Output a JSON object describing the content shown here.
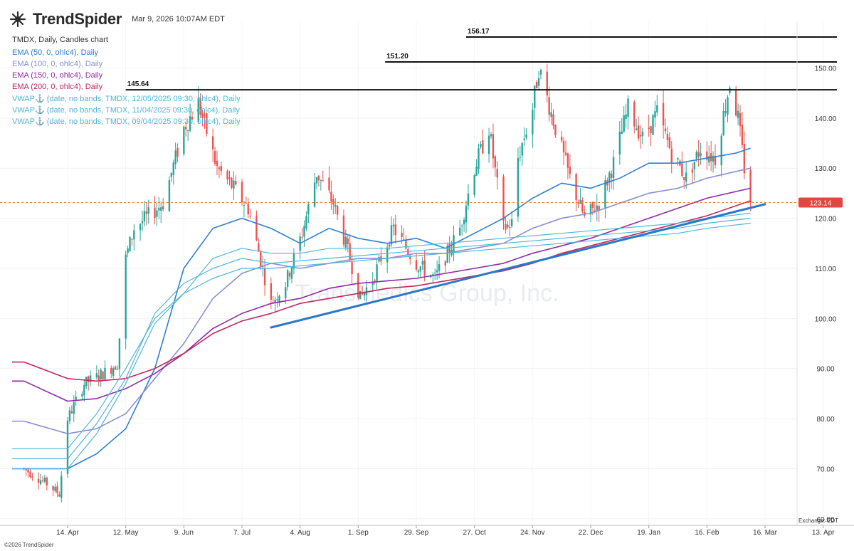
{
  "header": {
    "brand": "TrendSpider",
    "timestamp": "Mar 9, 2026 10:07AM EDT",
    "symbol_line": "TMDX, Daily, Candles chart"
  },
  "indicators": [
    {
      "label": "EMA (50, 0, ohlc4), Daily",
      "color": "#2f7fd1"
    },
    {
      "label": "EMA (100, 0, ohlc4), Daily",
      "color": "#8a8fd0"
    },
    {
      "label": "EMA (150, 0, ohlc4), Daily",
      "color": "#8e2aa8"
    },
    {
      "label": "EMA (200, 0, ohlc4), Daily",
      "color": "#c0275a"
    },
    {
      "label": "VWAP⚓ (date, no bands, TMDX, 12/05/2025 09:30, ohlc4), Daily",
      "color": "#4fb6d8"
    },
    {
      "label": "VWAP⚓ (date, no bands, TMDX, 11/04/2025 09:30, ohlc4), Daily",
      "color": "#4fb6d8"
    },
    {
      "label": "VWAP⚓ (date, no bands, TMDX, 09/04/2025 09:30, ohlc4), Daily",
      "color": "#4fb6d8"
    }
  ],
  "watermark": "TransMedics Group, Inc.",
  "footer": "©2026 TrendSpider",
  "exchange_label": "Exchange: EDT",
  "chart_data": {
    "type": "candlestick",
    "symbol": "TMDX",
    "interval": "Daily",
    "x_tick_labels": [
      "14. Apr",
      "12. May",
      "9. Jun",
      "7. Jul",
      "4. Aug",
      "1. Sep",
      "29. Sep",
      "27. Oct",
      "24. Nov",
      "22. Dec",
      "19. Jan",
      "16. Feb",
      "16. Mar",
      "13. Apr"
    ],
    "y_ticks": [
      60,
      70,
      80,
      90,
      100,
      110,
      120,
      130,
      140,
      150
    ],
    "ylim": [
      58.7,
      159.3
    ],
    "last_price": 123.14,
    "last_price_color": "#e2463f",
    "horizontal_levels": [
      {
        "label": "156.17",
        "value": 156.17
      },
      {
        "label": "151.20",
        "value": 151.2
      },
      {
        "label": "145.64",
        "value": 145.64
      }
    ],
    "trendline": {
      "from_date": "Jul 21",
      "from_value": 98.2,
      "to_date": "Mar 16",
      "to_value": 122.8,
      "color": "#2a78c8"
    },
    "price_path": [
      {
        "date": "Mar 24",
        "close": 70
      },
      {
        "date": "Apr 4",
        "close": 67
      },
      {
        "date": "Apr 10",
        "close": 65
      },
      {
        "date": "Apr 14",
        "close": 80
      },
      {
        "date": "Apr 22",
        "close": 87
      },
      {
        "date": "May 1",
        "close": 89
      },
      {
        "date": "May 8",
        "close": 91
      },
      {
        "date": "May 12",
        "close": 112
      },
      {
        "date": "May 16",
        "close": 118
      },
      {
        "date": "May 30",
        "close": 123
      },
      {
        "date": "Jun 9",
        "close": 138
      },
      {
        "date": "Jun 16",
        "close": 143
      },
      {
        "date": "Jun 25",
        "close": 130
      },
      {
        "date": "Jul 3",
        "close": 126
      },
      {
        "date": "Jul 10",
        "close": 122
      },
      {
        "date": "Jul 21",
        "close": 103
      },
      {
        "date": "Jul 28",
        "close": 107
      },
      {
        "date": "Aug 5",
        "close": 117
      },
      {
        "date": "Aug 12",
        "close": 129
      },
      {
        "date": "Aug 20",
        "close": 123
      },
      {
        "date": "Aug 28",
        "close": 112
      },
      {
        "date": "Sep 2",
        "close": 104
      },
      {
        "date": "Sep 8",
        "close": 108
      },
      {
        "date": "Sep 18",
        "close": 118
      },
      {
        "date": "Sep 29",
        "close": 111
      },
      {
        "date": "Oct 8",
        "close": 108
      },
      {
        "date": "Oct 20",
        "close": 118
      },
      {
        "date": "Oct 27",
        "close": 130
      },
      {
        "date": "Nov 3",
        "close": 138
      },
      {
        "date": "Nov 10",
        "close": 118
      },
      {
        "date": "Nov 14",
        "close": 119
      },
      {
        "date": "Nov 17",
        "close": 132
      },
      {
        "date": "Nov 24",
        "close": 142
      },
      {
        "date": "Nov 27",
        "close": 150
      },
      {
        "date": "Dec 5",
        "close": 138
      },
      {
        "date": "Dec 12",
        "close": 128
      },
      {
        "date": "Dec 19",
        "close": 120
      },
      {
        "date": "Dec 26",
        "close": 123
      },
      {
        "date": "Jan 2",
        "close": 131
      },
      {
        "date": "Jan 9",
        "close": 142
      },
      {
        "date": "Jan 16",
        "close": 136
      },
      {
        "date": "Jan 23",
        "close": 141
      },
      {
        "date": "Jan 30",
        "close": 133
      },
      {
        "date": "Feb 6",
        "close": 128
      },
      {
        "date": "Feb 13",
        "close": 134
      },
      {
        "date": "Feb 20",
        "close": 132
      },
      {
        "date": "Feb 27",
        "close": 147
      },
      {
        "date": "Mar 3",
        "close": 140
      },
      {
        "date": "Mar 6",
        "close": 130
      },
      {
        "date": "Mar 9",
        "close": 123.14
      }
    ],
    "series": [
      {
        "name": "EMA (50, 0, ohlc4), Daily",
        "color": "#2f7fd1",
        "points": [
          [
            "Apr 14",
            70
          ],
          [
            "Apr 28",
            73
          ],
          [
            "May 12",
            78
          ],
          [
            "May 26",
            90
          ],
          [
            "Jun 9",
            110
          ],
          [
            "Jun 23",
            118
          ],
          [
            "Jul 7",
            120
          ],
          [
            "Jul 21",
            118
          ],
          [
            "Aug 4",
            115
          ],
          [
            "Aug 18",
            118
          ],
          [
            "Sep 1",
            116
          ],
          [
            "Sep 15",
            115
          ],
          [
            "Sep 29",
            116
          ],
          [
            "Oct 13",
            114
          ],
          [
            "Oct 27",
            117
          ],
          [
            "Nov 10",
            120
          ],
          [
            "Nov 24",
            124
          ],
          [
            "Dec 8",
            127
          ],
          [
            "Dec 22",
            126
          ],
          [
            "Jan 5",
            128
          ],
          [
            "Jan 19",
            131
          ],
          [
            "Feb 2",
            131
          ],
          [
            "Feb 16",
            132
          ],
          [
            "Mar 2",
            133
          ],
          [
            "Mar 9",
            134
          ]
        ]
      },
      {
        "name": "EMA (100, 0, ohlc4), Daily",
        "color": "#8a8fd0",
        "points": [
          [
            "Mar 24",
            79.5
          ],
          [
            "Apr 14",
            77
          ],
          [
            "Apr 28",
            78
          ],
          [
            "May 12",
            81
          ],
          [
            "May 26",
            88
          ],
          [
            "Jun 9",
            95
          ],
          [
            "Jun 23",
            104
          ],
          [
            "Jul 7",
            109
          ],
          [
            "Jul 21",
            111
          ],
          [
            "Aug 4",
            110
          ],
          [
            "Aug 18",
            111
          ],
          [
            "Sep 1",
            112
          ],
          [
            "Sep 15",
            112
          ],
          [
            "Sep 29",
            113
          ],
          [
            "Oct 13",
            113
          ],
          [
            "Oct 27",
            114
          ],
          [
            "Nov 10",
            115
          ],
          [
            "Nov 24",
            118
          ],
          [
            "Dec 8",
            120
          ],
          [
            "Dec 22",
            121
          ],
          [
            "Jan 5",
            123
          ],
          [
            "Jan 19",
            125
          ],
          [
            "Feb 2",
            126
          ],
          [
            "Feb 16",
            128
          ],
          [
            "Mar 9",
            130
          ]
        ]
      },
      {
        "name": "EMA (150, 0, ohlc4), Daily",
        "color": "#8e2aa8",
        "points": [
          [
            "Mar 24",
            87.5
          ],
          [
            "Apr 14",
            83.5
          ],
          [
            "Apr 28",
            84
          ],
          [
            "May 12",
            86
          ],
          [
            "May 26",
            89
          ],
          [
            "Jun 9",
            93
          ],
          [
            "Jun 23",
            98
          ],
          [
            "Jul 7",
            101
          ],
          [
            "Jul 21",
            103
          ],
          [
            "Aug 4",
            104
          ],
          [
            "Aug 18",
            106
          ],
          [
            "Sep 1",
            107
          ],
          [
            "Sep 15",
            107.5
          ],
          [
            "Sep 29",
            108
          ],
          [
            "Oct 13",
            109
          ],
          [
            "Oct 27",
            110
          ],
          [
            "Nov 10",
            111
          ],
          [
            "Nov 24",
            113
          ],
          [
            "Dec 8",
            114.5
          ],
          [
            "Dec 22",
            116
          ],
          [
            "Jan 5",
            118
          ],
          [
            "Jan 19",
            120
          ],
          [
            "Feb 2",
            122
          ],
          [
            "Feb 16",
            124
          ],
          [
            "Mar 9",
            126
          ]
        ]
      },
      {
        "name": "EMA (200, 0, ohlc4), Daily",
        "color": "#c0275a",
        "points": [
          [
            "Mar 24",
            91.3
          ],
          [
            "Apr 14",
            88
          ],
          [
            "Apr 28",
            87.5
          ],
          [
            "May 12",
            88
          ],
          [
            "May 26",
            90
          ],
          [
            "Jun 9",
            93
          ],
          [
            "Jun 23",
            97
          ],
          [
            "Jul 7",
            99.5
          ],
          [
            "Jul 21",
            101
          ],
          [
            "Aug 4",
            103
          ],
          [
            "Aug 18",
            104
          ],
          [
            "Sep 1",
            105
          ],
          [
            "Sep 15",
            106
          ],
          [
            "Sep 29",
            106.5
          ],
          [
            "Oct 13",
            107.5
          ],
          [
            "Oct 27",
            108.5
          ],
          [
            "Nov 10",
            109.5
          ],
          [
            "Nov 24",
            111
          ],
          [
            "Dec 8",
            113
          ],
          [
            "Dec 22",
            114.5
          ],
          [
            "Jan 5",
            116
          ],
          [
            "Jan 19",
            117.5
          ],
          [
            "Feb 2",
            119
          ],
          [
            "Feb 16",
            120.5
          ],
          [
            "Mar 9",
            123.5
          ]
        ]
      },
      {
        "name": "VWAP⚓ (date, no bands, TMDX, 12/05/2025 09:30, ohlc4), Daily",
        "color": "#4fb6d8",
        "points": [
          [
            "Apr 14",
            70
          ],
          [
            "Apr 28",
            77
          ],
          [
            "May 12",
            87
          ],
          [
            "May 26",
            99
          ],
          [
            "Jun 9",
            105
          ],
          [
            "Jun 23",
            112
          ],
          [
            "Jul 7",
            114
          ],
          [
            "Jul 21",
            113
          ],
          [
            "Aug 4",
            113
          ],
          [
            "Aug 18",
            114
          ],
          [
            "Sep 1",
            114
          ],
          [
            "Sep 15",
            114
          ],
          [
            "Sep 29",
            114.5
          ],
          [
            "Oct 13",
            115
          ],
          [
            "Oct 27",
            115.5
          ],
          [
            "Nov 10",
            116
          ],
          [
            "Nov 24",
            116.5
          ],
          [
            "Dec 8",
            117
          ],
          [
            "Dec 22",
            117.5
          ],
          [
            "Jan 5",
            118
          ],
          [
            "Jan 19",
            118.5
          ],
          [
            "Feb 2",
            119
          ],
          [
            "Feb 16",
            120
          ],
          [
            "Mar 9",
            121
          ]
        ]
      },
      {
        "name": "VWAP⚓ (date, no bands, TMDX, 11/04/2025 09:30, ohlc4), Daily",
        "color": "#4fb6d8",
        "points": [
          [
            "Apr 14",
            72
          ],
          [
            "Apr 28",
            79
          ],
          [
            "May 12",
            88
          ],
          [
            "May 26",
            101
          ],
          [
            "Jun 9",
            107
          ],
          [
            "Jun 23",
            110
          ],
          [
            "Jul 7",
            112
          ],
          [
            "Jul 21",
            111
          ],
          [
            "Aug 4",
            111.5
          ],
          [
            "Aug 18",
            112
          ],
          [
            "Sep 1",
            112.5
          ],
          [
            "Sep 15",
            113
          ],
          [
            "Sep 29",
            113.5
          ],
          [
            "Oct 13",
            114
          ],
          [
            "Oct 27",
            114.5
          ],
          [
            "Nov 10",
            115
          ],
          [
            "Nov 24",
            115.5
          ],
          [
            "Dec 8",
            116
          ],
          [
            "Dec 22",
            116.5
          ],
          [
            "Jan 5",
            117
          ],
          [
            "Jan 19",
            117.5
          ],
          [
            "Feb 2",
            118
          ],
          [
            "Feb 16",
            119
          ],
          [
            "Mar 9",
            120
          ]
        ]
      },
      {
        "name": "VWAP⚓ (date, no bands, TMDX, 09/04/2025 09:30, ohlc4), Daily",
        "color": "#4fb6d8",
        "points": [
          [
            "Apr 14",
            74
          ],
          [
            "Apr 28",
            81
          ],
          [
            "May 12",
            90
          ],
          [
            "May 26",
            100
          ],
          [
            "Jun 9",
            105
          ],
          [
            "Jun 23",
            108
          ],
          [
            "Jul 7",
            110
          ],
          [
            "Jul 21",
            110
          ],
          [
            "Aug 4",
            110.5
          ],
          [
            "Aug 18",
            111
          ],
          [
            "Sep 1",
            111.5
          ],
          [
            "Sep 15",
            112
          ],
          [
            "Sep 29",
            112.5
          ],
          [
            "Oct 13",
            113
          ],
          [
            "Oct 27",
            113.5
          ],
          [
            "Nov 10",
            114
          ],
          [
            "Nov 24",
            114.5
          ],
          [
            "Dec 8",
            115
          ],
          [
            "Dec 22",
            115.5
          ],
          [
            "Jan 5",
            116
          ],
          [
            "Jan 19",
            116.5
          ],
          [
            "Feb 2",
            117
          ],
          [
            "Feb 16",
            118
          ],
          [
            "Mar 9",
            119
          ]
        ]
      }
    ]
  }
}
